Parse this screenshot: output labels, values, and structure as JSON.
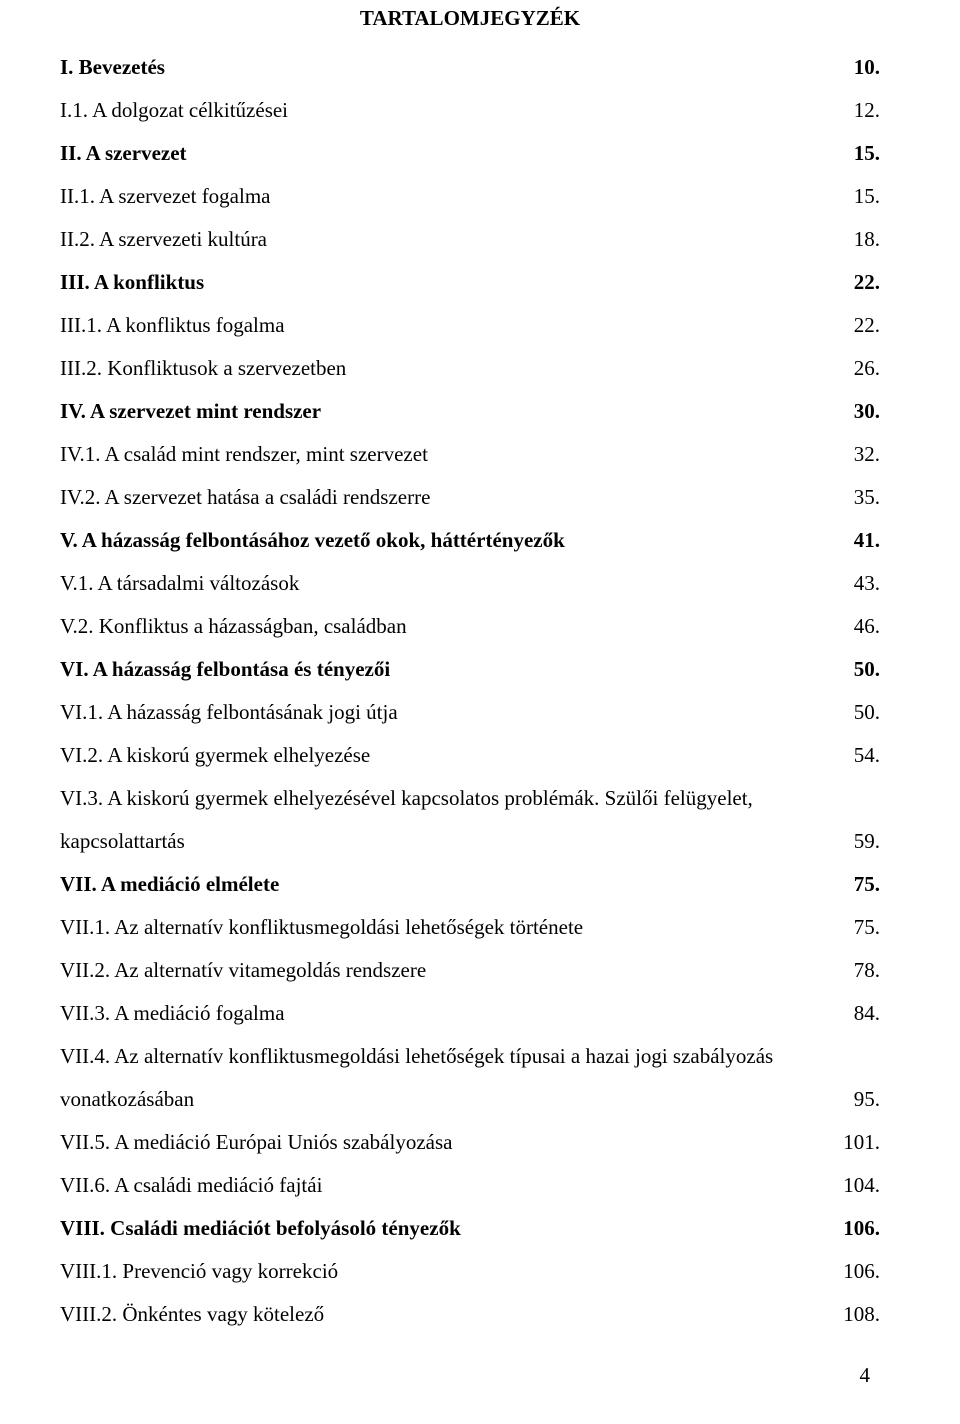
{
  "title": "TARTALOMJEGYZÉK",
  "entries": [
    {
      "label": "I. Bevezetés",
      "page": "10.",
      "bold": true
    },
    {
      "label": "I.1. A dolgozat célkitűzései",
      "page": "12.",
      "bold": false
    },
    {
      "label": "II. A szervezet",
      "page": "15.",
      "bold": true
    },
    {
      "label": "II.1. A szervezet fogalma",
      "page": "15.",
      "bold": false
    },
    {
      "label": "II.2. A szervezeti kultúra",
      "page": "18.",
      "bold": false
    },
    {
      "label": "III. A konfliktus",
      "page": "22.",
      "bold": true
    },
    {
      "label": "III.1. A konfliktus fogalma",
      "page": "22.",
      "bold": false
    },
    {
      "label": "III.2. Konfliktusok a szervezetben",
      "page": "26.",
      "bold": false
    },
    {
      "label": "IV. A szervezet mint rendszer",
      "page": "30.",
      "bold": true
    },
    {
      "label": "IV.1. A család mint rendszer, mint szervezet",
      "page": "32.",
      "bold": false
    },
    {
      "label": "IV.2. A szervezet hatása a családi rendszerre",
      "page": "35.",
      "bold": false
    },
    {
      "label": "V. A házasság felbontásához vezető okok, háttértényezők",
      "page": "41.",
      "bold": true
    },
    {
      "label": "V.1. A társadalmi változások",
      "page": "43.",
      "bold": false
    },
    {
      "label": "V.2. Konfliktus a házasságban, családban",
      "page": "46.",
      "bold": false
    },
    {
      "label": "VI. A  házasság felbontása és tényezői",
      "page": "50.",
      "bold": true
    },
    {
      "label": "VI.1. A házasság felbontásának jogi útja",
      "page": "50.",
      "bold": false
    },
    {
      "label": "VI.2. A kiskorú gyermek elhelyezése",
      "page": "54.",
      "bold": false
    },
    {
      "label": "VI.3. A kiskorú gyermek elhelyezésével kapcsolatos problémák. Szülői felügyelet,",
      "page": "",
      "bold": false,
      "noPage": true
    },
    {
      "label": "kapcsolattartás",
      "page": "59.",
      "bold": false
    },
    {
      "label": "VII. A mediáció elmélete",
      "page": "75.",
      "bold": true
    },
    {
      "label": "VII.1. Az alternatív konfliktusmegoldási lehetőségek története",
      "page": "75.",
      "bold": false
    },
    {
      "label": "VII.2. Az alternatív vitamegoldás rendszere",
      "page": "78.",
      "bold": false
    },
    {
      "label": "VII.3. A mediáció fogalma",
      "page": "84.",
      "bold": false
    },
    {
      "label": "VII.4. Az alternatív konfliktusmegoldási lehetőségek típusai a hazai jogi szabályozás",
      "page": "",
      "bold": false,
      "noPage": true
    },
    {
      "label": "vonatkozásában",
      "page": "95.",
      "bold": false
    },
    {
      "label": "VII.5. A mediáció Európai Uniós szabályozása",
      "page": "101.",
      "bold": false
    },
    {
      "label": "VII.6. A családi mediáció fajtái",
      "page": "104.",
      "bold": false
    },
    {
      "label": "VIII. Családi mediációt befolyásoló tényezők",
      "page": "106.",
      "bold": true
    },
    {
      "label": "VIII.1. Prevenció vagy korrekció",
      "page": "106.",
      "bold": false
    },
    {
      "label": "VIII.2. Önkéntes vagy kötelező",
      "page": "108.",
      "bold": false
    }
  ],
  "pageNumber": "4",
  "style": {
    "backgroundColor": "#ffffff",
    "textColor": "#000000",
    "fontFamily": "Times New Roman",
    "titleFontSize": 21,
    "bodyFontSize": 21,
    "lineSpacing": 18,
    "pageWidth": 960,
    "pageHeight": 1424
  }
}
